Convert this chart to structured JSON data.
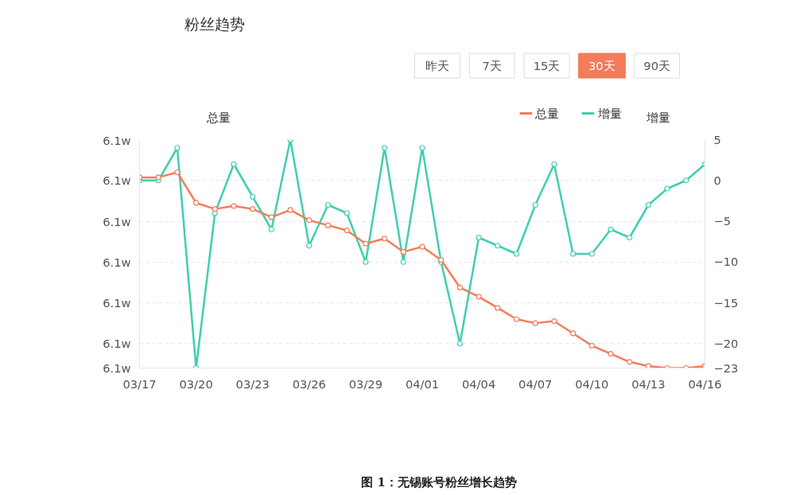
{
  "chart_data": {
    "type": "line",
    "title": "粉丝趋势",
    "annotations": [
      "昨天",
      "7天",
      "15天",
      "30天",
      "90天",
      "图 1：无锡账号粉丝增长趋势"
    ],
    "categories": [
      "03/17",
      null,
      null,
      "03/20",
      null,
      null,
      "03/23",
      null,
      null,
      "03/26",
      null,
      null,
      "03/29",
      null,
      null,
      "04/01",
      null,
      null,
      "04/04",
      null,
      null,
      "04/07",
      null,
      null,
      "04/10",
      null,
      null,
      "04/13",
      null,
      null,
      "04/16"
    ],
    "series": [
      {
        "name": "总量",
        "color": "#f47c5a",
        "values": [
          6.1267,
          6.1267,
          6.1272,
          6.1242,
          6.1236,
          6.1239,
          6.1236,
          6.1228,
          6.1235,
          6.1225,
          6.122,
          6.1215,
          6.1202,
          6.1207,
          6.1194,
          6.1199,
          6.1186,
          6.1159,
          6.115,
          6.1139,
          6.1128,
          6.1124,
          6.1126,
          6.1114,
          6.1102,
          6.1094,
          6.1086,
          6.1082,
          6.108,
          6.108,
          6.1082
        ]
      },
      {
        "name": "增量",
        "color": "#3fcfb0",
        "axis": "y2",
        "values": [
          0,
          0,
          4,
          -23,
          -4,
          2,
          -2,
          -6,
          5,
          -8,
          -3,
          -4,
          -10,
          4,
          -10,
          4,
          -10,
          -20,
          -7,
          -8,
          -9,
          -3,
          2,
          -9,
          -9,
          -6,
          -7,
          -3,
          -1,
          0,
          2
        ]
      }
    ],
    "ylabel": "总量",
    "y2label": "增量",
    "ylim": [
      6.108,
      6.1304
    ],
    "yticks": [
      {
        "value": 6.108,
        "label": "6.1w"
      },
      {
        "value": 6.1104,
        "label": "6.1w"
      },
      {
        "value": 6.1144,
        "label": "6.1w"
      },
      {
        "value": 6.1184,
        "label": "6.1w"
      },
      {
        "value": 6.1224,
        "label": "6.1w"
      },
      {
        "value": 6.1264,
        "label": "6.1w"
      },
      {
        "value": 6.1304,
        "label": "6.1w"
      }
    ],
    "y2lim": [
      -23,
      5
    ],
    "y2ticks": [
      -23,
      -20,
      -15,
      -10,
      -5,
      0,
      5
    ],
    "grid": "y",
    "legend": "top right",
    "marker": "circle",
    "line_style": "solid"
  }
}
